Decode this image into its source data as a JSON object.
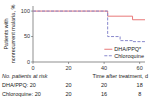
{
  "chart_data": {
    "type": "step",
    "y_label": "Patients with\nnonrecurrent malaria, %",
    "xlim": [
      0,
      63
    ],
    "ylim": [
      0,
      110
    ],
    "xticks": [
      0,
      20,
      40,
      60
    ],
    "yticks": [
      0,
      50,
      100
    ],
    "grid": false,
    "legend": "lower right",
    "series": [
      {
        "name": "DHA/PPQ*",
        "color": "#e87878",
        "line_style": "solid",
        "x": [
          0,
          42,
          42,
          56,
          56,
          63
        ],
        "values": [
          100,
          100,
          90,
          90,
          83,
          83
        ]
      },
      {
        "name": "Chloroquine",
        "color": "#8888cc",
        "line_style": "dashed",
        "x": [
          0,
          42,
          42,
          49,
          49,
          56,
          56,
          63
        ],
        "values": [
          100,
          100,
          50,
          50,
          42,
          42,
          40,
          40
        ]
      }
    ],
    "risk_table": {
      "title": "No. patients at risk",
      "time_label": "Time after treatment, d",
      "x": [
        20,
        40,
        60
      ],
      "rows": [
        {
          "label": "DHA/PPQ: 20",
          "values": [
            20,
            20,
            18
          ]
        },
        {
          "label": "Chloroquine: 20",
          "values": [
            20,
            16,
            8
          ]
        }
      ]
    }
  }
}
